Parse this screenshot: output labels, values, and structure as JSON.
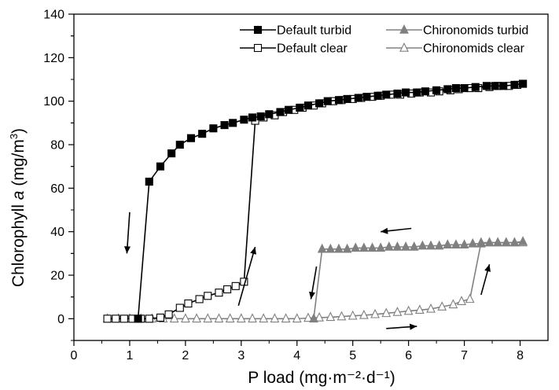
{
  "chart_data": {
    "type": "line",
    "xlabel": "P load (mg·m⁻²·d⁻¹)",
    "ylabel_main": "Chlorophyll ",
    "ylabel_italic": "a",
    "ylabel_unit": " (mg/m",
    "ylabel_sup": "3",
    "ylabel_close": ")",
    "xlim": [
      0,
      8.5
    ],
    "ylim": [
      -10,
      140
    ],
    "xticks": [
      0,
      1,
      2,
      3,
      4,
      5,
      6,
      7,
      8
    ],
    "yticks": [
      0,
      20,
      40,
      60,
      80,
      100,
      120,
      140
    ],
    "legend_position": "top-right",
    "series": [
      {
        "name": "Default turbid",
        "marker": "square-filled",
        "color": "#000000",
        "points": [
          [
            1.15,
            0
          ],
          [
            1.35,
            63
          ],
          [
            1.55,
            70
          ],
          [
            1.75,
            76
          ],
          [
            1.9,
            80
          ],
          [
            2.1,
            83
          ],
          [
            2.3,
            85
          ],
          [
            2.5,
            87.5
          ],
          [
            2.7,
            89
          ],
          [
            2.85,
            90
          ],
          [
            3.05,
            91.5
          ],
          [
            3.2,
            92.5
          ],
          [
            3.35,
            93
          ],
          [
            3.5,
            94
          ],
          [
            3.7,
            95
          ],
          [
            3.85,
            96
          ],
          [
            4.05,
            97
          ],
          [
            4.2,
            98
          ],
          [
            4.4,
            99
          ],
          [
            4.55,
            100
          ],
          [
            4.75,
            100.5
          ],
          [
            4.9,
            101
          ],
          [
            5.1,
            101.5
          ],
          [
            5.25,
            102
          ],
          [
            5.45,
            102.5
          ],
          [
            5.6,
            103
          ],
          [
            5.8,
            103.5
          ],
          [
            5.95,
            104
          ],
          [
            6.15,
            104
          ],
          [
            6.3,
            104.5
          ],
          [
            6.5,
            105
          ],
          [
            6.7,
            105.5
          ],
          [
            6.85,
            106
          ],
          [
            7.0,
            106
          ],
          [
            7.2,
            106.5
          ],
          [
            7.4,
            107
          ],
          [
            7.55,
            107
          ],
          [
            7.7,
            107
          ],
          [
            7.9,
            107.5
          ],
          [
            8.05,
            108
          ]
        ]
      },
      {
        "name": "Default clear",
        "marker": "square-open",
        "color": "#000000",
        "points": [
          [
            0.6,
            0
          ],
          [
            0.75,
            0
          ],
          [
            0.9,
            0
          ],
          [
            1.05,
            0
          ],
          [
            1.2,
            0
          ],
          [
            1.35,
            0
          ],
          [
            1.55,
            0.5
          ],
          [
            1.7,
            2
          ],
          [
            1.9,
            5
          ],
          [
            2.05,
            7
          ],
          [
            2.25,
            9
          ],
          [
            2.4,
            10.5
          ],
          [
            2.6,
            12
          ],
          [
            2.75,
            13.5
          ],
          [
            2.9,
            15
          ],
          [
            3.05,
            17
          ],
          [
            3.25,
            91
          ],
          [
            3.4,
            92.5
          ],
          [
            3.6,
            93.5
          ],
          [
            3.75,
            95
          ],
          [
            3.95,
            96
          ],
          [
            4.1,
            97
          ],
          [
            4.3,
            98
          ],
          [
            4.45,
            99
          ],
          [
            4.65,
            100
          ],
          [
            4.8,
            100.5
          ],
          [
            5.0,
            101
          ],
          [
            5.15,
            101.5
          ],
          [
            5.35,
            102
          ],
          [
            5.5,
            102.5
          ],
          [
            5.7,
            103
          ],
          [
            5.85,
            103
          ],
          [
            6.05,
            103.5
          ],
          [
            6.2,
            104
          ],
          [
            6.4,
            104
          ],
          [
            6.55,
            104.5
          ],
          [
            6.75,
            105
          ],
          [
            6.9,
            105.5
          ],
          [
            7.1,
            106
          ],
          [
            7.25,
            106
          ],
          [
            7.45,
            106.5
          ],
          [
            7.6,
            107
          ],
          [
            7.8,
            107
          ],
          [
            7.95,
            107.5
          ],
          [
            8.05,
            108
          ]
        ]
      },
      {
        "name": "Chironomids turbid",
        "marker": "triangle-filled",
        "color": "#808080",
        "points": [
          [
            4.3,
            0
          ],
          [
            4.45,
            32
          ],
          [
            4.6,
            32
          ],
          [
            4.75,
            32
          ],
          [
            4.9,
            32
          ],
          [
            5.05,
            32.5
          ],
          [
            5.2,
            32.5
          ],
          [
            5.35,
            32.5
          ],
          [
            5.5,
            32.5
          ],
          [
            5.65,
            33
          ],
          [
            5.8,
            33
          ],
          [
            5.95,
            33
          ],
          [
            6.1,
            33
          ],
          [
            6.25,
            33.5
          ],
          [
            6.4,
            33.5
          ],
          [
            6.55,
            33.5
          ],
          [
            6.7,
            34
          ],
          [
            6.85,
            34
          ],
          [
            7.0,
            34
          ],
          [
            7.15,
            34.5
          ],
          [
            7.3,
            34.5
          ],
          [
            7.45,
            35
          ],
          [
            7.6,
            35
          ],
          [
            7.75,
            35
          ],
          [
            7.9,
            35
          ],
          [
            8.05,
            35.5
          ]
        ]
      },
      {
        "name": "Chironomids clear",
        "marker": "triangle-open",
        "color": "#808080",
        "points": [
          [
            0.6,
            0
          ],
          [
            0.8,
            0
          ],
          [
            1.0,
            0
          ],
          [
            1.2,
            0
          ],
          [
            1.4,
            0
          ],
          [
            1.6,
            0
          ],
          [
            1.8,
            0
          ],
          [
            2.0,
            0
          ],
          [
            2.2,
            0
          ],
          [
            2.4,
            0
          ],
          [
            2.6,
            0
          ],
          [
            2.8,
            0
          ],
          [
            3.0,
            0
          ],
          [
            3.2,
            0
          ],
          [
            3.4,
            0
          ],
          [
            3.6,
            0
          ],
          [
            3.8,
            0
          ],
          [
            4.0,
            0
          ],
          [
            4.2,
            0.3
          ],
          [
            4.4,
            0.5
          ],
          [
            4.6,
            0.7
          ],
          [
            4.8,
            1
          ],
          [
            5.0,
            1.3
          ],
          [
            5.2,
            1.6
          ],
          [
            5.4,
            2
          ],
          [
            5.6,
            2.5
          ],
          [
            5.8,
            3
          ],
          [
            6.0,
            3.5
          ],
          [
            6.2,
            4
          ],
          [
            6.4,
            4.5
          ],
          [
            6.6,
            5.5
          ],
          [
            6.8,
            6.5
          ],
          [
            6.95,
            8
          ],
          [
            7.1,
            9
          ],
          [
            7.3,
            35
          ],
          [
            7.45,
            35
          ],
          [
            7.6,
            35
          ],
          [
            7.75,
            35
          ],
          [
            7.9,
            35
          ],
          [
            8.05,
            35
          ]
        ]
      }
    ],
    "arrows": [
      {
        "from": [
          1.0,
          49
        ],
        "to": [
          0.95,
          30
        ]
      },
      {
        "from": [
          2.95,
          6
        ],
        "to": [
          3.25,
          33
        ]
      },
      {
        "from": [
          6.05,
          41.5
        ],
        "to": [
          5.5,
          40
        ]
      },
      {
        "from": [
          4.35,
          24
        ],
        "to": [
          4.25,
          9
        ]
      },
      {
        "from": [
          5.6,
          -4.5
        ],
        "to": [
          6.15,
          -3.5
        ]
      },
      {
        "from": [
          7.3,
          11
        ],
        "to": [
          7.45,
          25
        ]
      }
    ]
  }
}
